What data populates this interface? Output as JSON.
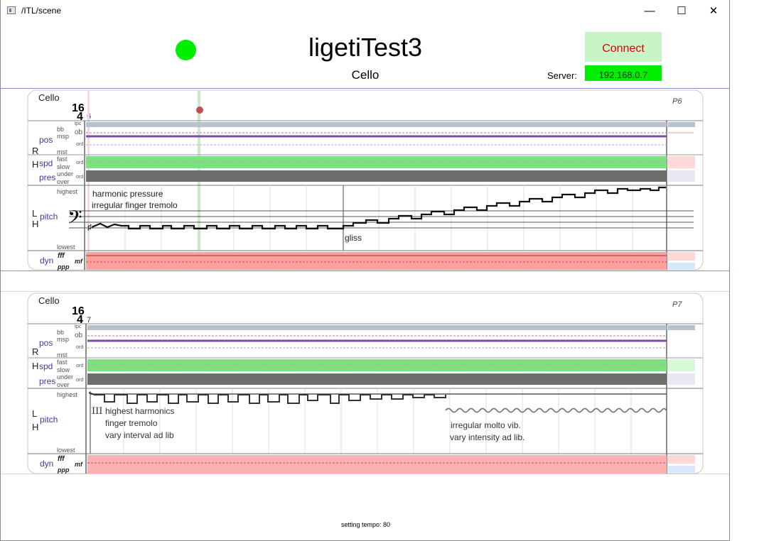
{
  "window": {
    "title": "/ITL/scene",
    "minimize": "—",
    "maximize": "☐",
    "close": "✕"
  },
  "header": {
    "scene_title": "ligetiTest3",
    "part_name": "Cello",
    "connect_label": "Connect",
    "server_label": "Server:",
    "server_ip": "192.168.0.7",
    "status_color": "#00ee00"
  },
  "scores": [
    {
      "instrument": "Cello",
      "time_sig_top": "16",
      "time_sig_bottom": "4",
      "measure": "6",
      "page": "P6",
      "row_labels": {
        "r": "R",
        "h": "H",
        "l": "L",
        "pos": "pos",
        "spd": "spd",
        "pres": "pres",
        "pitch": "pitch",
        "dyn": "dyn"
      },
      "sub_labels": {
        "tpc": "tpc",
        "bb": "bb",
        "msp": "msp",
        "ob": "ob",
        "ord": "ord",
        "mst": "mst",
        "fast": "fast",
        "slow": "slow",
        "under": "under",
        "over": "over",
        "highest": "highest",
        "lowest": "lowest",
        "fff": "fff",
        "mf": "mf",
        "ppp": "ppp"
      },
      "texts": [
        "harmonic pressure",
        "irregular finger tremolo",
        "gliss"
      ]
    },
    {
      "instrument": "Cello",
      "time_sig_top": "16",
      "time_sig_bottom": "4",
      "measure": "7",
      "page": "P7",
      "row_labels": {
        "r": "R",
        "h": "H",
        "l": "L",
        "pos": "pos",
        "spd": "spd",
        "pres": "pres",
        "pitch": "pitch",
        "dyn": "dyn"
      },
      "sub_labels": {
        "tpc": "tpc",
        "bb": "bb",
        "msp": "msp",
        "ob": "ob",
        "ord": "ord",
        "mst": "mst",
        "fast": "fast",
        "slow": "slow",
        "under": "under",
        "over": "over",
        "highest": "highest",
        "lowest": "lowest",
        "fff": "fff",
        "mf": "mf",
        "ppp": "ppp"
      },
      "texts": [
        "III",
        "highest harmonics",
        "finger tremolo",
        "vary interval ad lib",
        "irregular molto vib.",
        "vary intensity ad lib."
      ]
    }
  ],
  "footer": {
    "status_text": "setting tempo: 80"
  },
  "colors": {
    "accent_purple": "#7b4fa8",
    "speed_green": "#7fe07f",
    "pressure_gray": "#6e6e6e",
    "dyn_red": "#ff9f9f",
    "line_blue": "#8c8cd8"
  }
}
